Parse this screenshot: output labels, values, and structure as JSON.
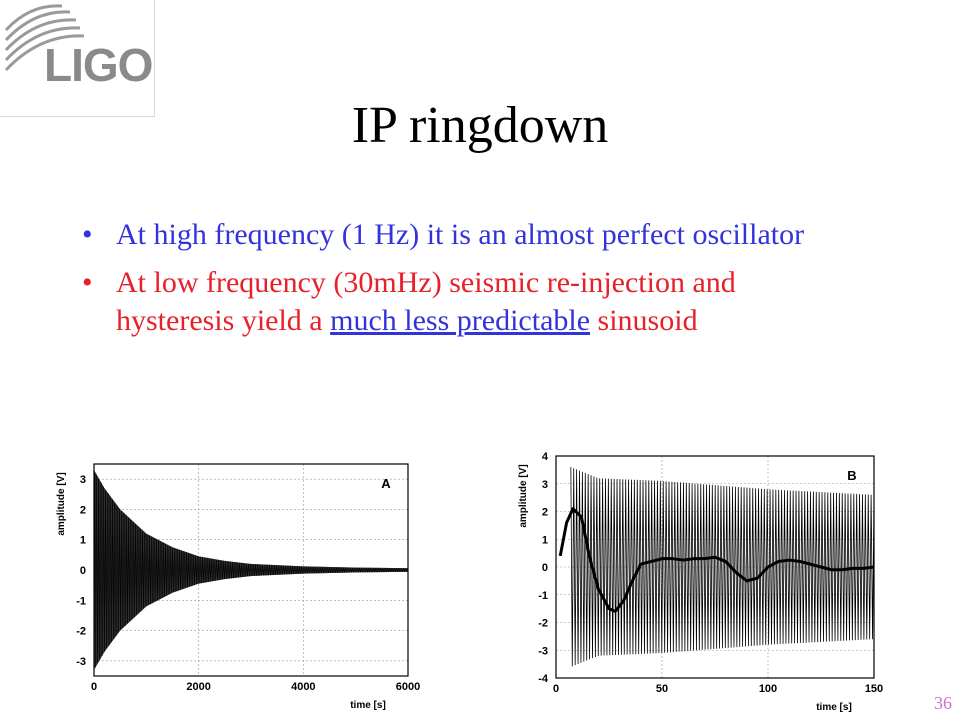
{
  "logo": {
    "text": "LIGO"
  },
  "slide": {
    "title": "IP ringdown",
    "bullets": [
      {
        "text": "At high frequency (1 Hz) it is an almost perfect oscillator"
      },
      {
        "text_before": "At low frequency (30mHz) seismic re-injection and hysteresis yield a ",
        "link_text": "much less predictable",
        "text_after": " sinusoid"
      }
    ],
    "page_number": "36"
  },
  "colors": {
    "bullet1": "#3333dd",
    "bullet2": "#e8202a",
    "link": "#3333dd",
    "page_number": "#d070d0"
  },
  "chart_data": [
    {
      "type": "line",
      "panel_label": "A",
      "xlabel": "time [s]",
      "ylabel": "amplitude [V]",
      "xlim": [
        0,
        6000
      ],
      "ylim": [
        -3.5,
        3.5
      ],
      "xticks": [
        0,
        2000,
        4000,
        6000
      ],
      "yticks": [
        -3,
        -2,
        -1,
        0,
        1,
        2,
        3
      ],
      "grid": true,
      "series": [
        {
          "style": "dense decaying oscillation (1 Hz)",
          "envelope": {
            "x": [
              0,
              200,
              500,
              1000,
              1500,
              2000,
              2500,
              3000,
              4000,
              5000,
              6000
            ],
            "y": [
              3.3,
              2.7,
              2.0,
              1.2,
              0.75,
              0.45,
              0.3,
              0.2,
              0.12,
              0.08,
              0.06
            ]
          }
        }
      ]
    },
    {
      "type": "line",
      "panel_label": "B",
      "xlabel": "time [s]",
      "ylabel": "amplitude [V]",
      "xlim": [
        0,
        150
      ],
      "ylim": [
        -4,
        4
      ],
      "xticks": [
        0,
        50,
        100,
        150
      ],
      "yticks": [
        -4,
        -3,
        -2,
        -1,
        0,
        1,
        2,
        3,
        4
      ],
      "grid": true,
      "series": [
        {
          "style": "thin oscillation, slow decay",
          "envelope": {
            "x": [
              7,
              20,
              50,
              100,
              150
            ],
            "y": [
              3.6,
              3.2,
              3.1,
              2.8,
              2.6
            ]
          }
        },
        {
          "style": "thick low-frequency drift",
          "x": [
            2,
            5,
            8,
            12,
            16,
            20,
            25,
            28,
            32,
            36,
            40,
            45,
            50,
            55,
            60,
            65,
            70,
            75,
            80,
            85,
            90,
            95,
            100,
            105,
            110,
            115,
            120,
            125,
            130,
            135,
            140,
            145,
            150
          ],
          "y": [
            0.4,
            1.6,
            2.1,
            1.8,
            0.3,
            -0.8,
            -1.5,
            -1.6,
            -1.2,
            -0.5,
            0.1,
            0.2,
            0.3,
            0.3,
            0.25,
            0.3,
            0.3,
            0.35,
            0.2,
            -0.2,
            -0.5,
            -0.4,
            0.0,
            0.2,
            0.25,
            0.2,
            0.1,
            0.0,
            -0.1,
            -0.1,
            -0.05,
            -0.05,
            0.0
          ]
        }
      ]
    }
  ]
}
